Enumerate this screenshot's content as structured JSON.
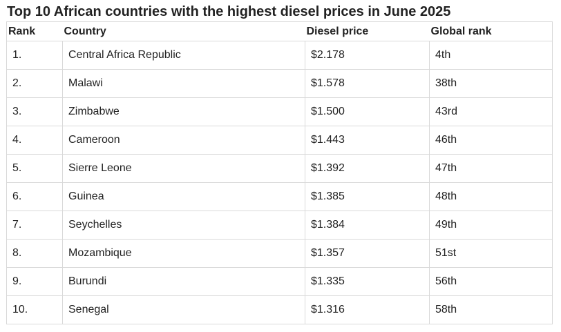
{
  "title": "Top 10 African countries with the highest diesel prices in June 2025",
  "columns": {
    "rank": "Rank",
    "country": "Country",
    "price": "Diesel price",
    "global": "Global rank"
  },
  "rows": [
    {
      "rank": "1.",
      "country": "Central Africa Republic",
      "price": "$2.178",
      "global": "4th"
    },
    {
      "rank": "2.",
      "country": "Malawi",
      "price": "$1.578",
      "global": "38th"
    },
    {
      "rank": "3.",
      "country": "Zimbabwe",
      "price": "$1.500",
      "global": "43rd"
    },
    {
      "rank": "4.",
      "country": "Cameroon",
      "price": "$1.443",
      "global": "46th"
    },
    {
      "rank": "5.",
      "country": "Sierre Leone",
      "price": "$1.392",
      "global": "47th"
    },
    {
      "rank": "6.",
      "country": "Guinea",
      "price": "$1.385",
      "global": "48th"
    },
    {
      "rank": "7.",
      "country": "Seychelles",
      "price": "$1.384",
      "global": "49th"
    },
    {
      "rank": "8.",
      "country": "Mozambique",
      "price": "$1.357",
      "global": "51st"
    },
    {
      "rank": "9.",
      "country": "Burundi",
      "price": "$1.335",
      "global": "56th"
    },
    {
      "rank": "10.",
      "country": "Senegal",
      "price": "$1.316",
      "global": "58th"
    }
  ]
}
